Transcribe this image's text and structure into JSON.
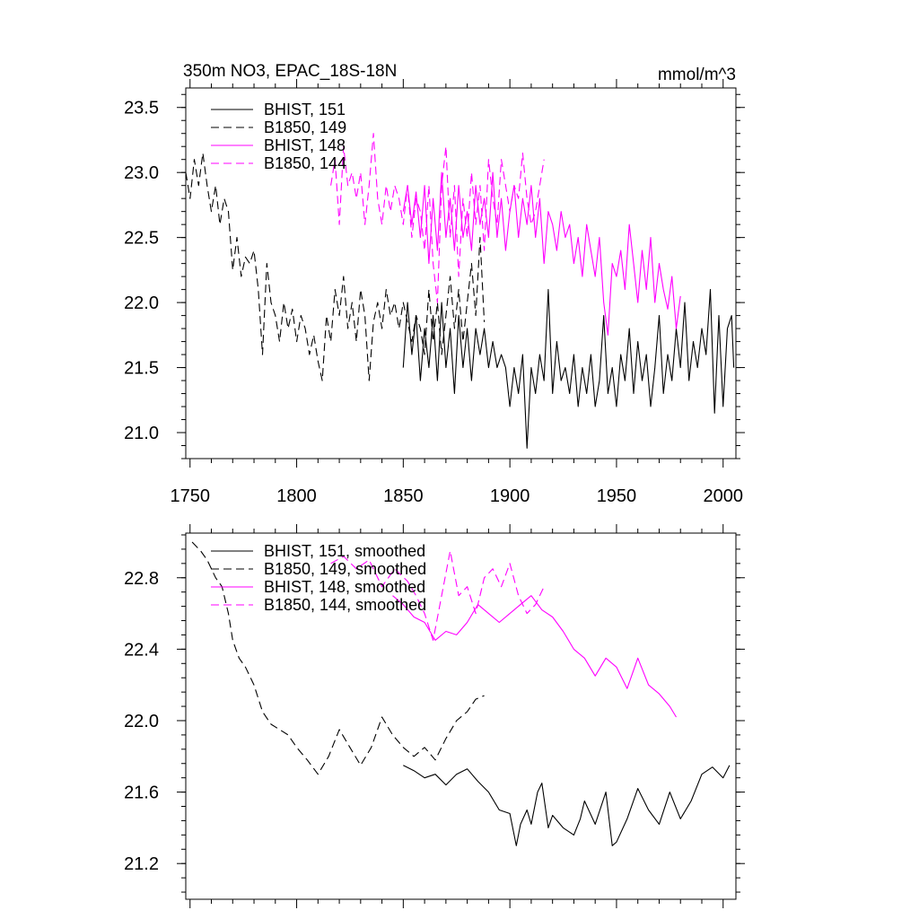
{
  "figure": {
    "title_left": "350m NO3, EPAC_18S-18N",
    "title_right": "mmol/m^3"
  },
  "chart_data": [
    {
      "type": "line",
      "title": "350m NO3, EPAC_18S-18N",
      "units": "mmol/m^3",
      "xlabel": "",
      "ylabel": "",
      "xlim": [
        1748,
        2006
      ],
      "ylim": [
        20.8,
        23.65
      ],
      "x_ticks": [
        1750,
        1800,
        1850,
        1900,
        1950,
        2000
      ],
      "x_tick_labels": [
        "1750",
        "1800",
        "1850",
        "1900",
        "1950",
        "2000"
      ],
      "y_ticks": [
        21.0,
        21.5,
        22.0,
        22.5,
        23.0,
        23.5
      ],
      "y_tick_labels": [
        "21.0",
        "21.5",
        "22.0",
        "22.5",
        "23.0",
        "23.5"
      ],
      "legend_position": "top-left",
      "series": [
        {
          "name": "BHIST, 151",
          "color": "#000000",
          "dash": "solid",
          "x": [
            1850,
            1852,
            1854,
            1856,
            1858,
            1860,
            1862,
            1864,
            1866,
            1868,
            1870,
            1872,
            1874,
            1876,
            1878,
            1880,
            1882,
            1884,
            1886,
            1888,
            1890,
            1892,
            1894,
            1896,
            1898,
            1900,
            1902,
            1904,
            1906,
            1908,
            1910,
            1912,
            1914,
            1916,
            1918,
            1920,
            1922,
            1924,
            1926,
            1928,
            1930,
            1932,
            1934,
            1936,
            1938,
            1940,
            1942,
            1944,
            1946,
            1948,
            1950,
            1952,
            1954,
            1956,
            1958,
            1960,
            1962,
            1964,
            1966,
            1968,
            1970,
            1972,
            1974,
            1976,
            1978,
            1980,
            1982,
            1984,
            1986,
            1988,
            1990,
            1992,
            1994,
            1996,
            1998,
            2000,
            2002,
            2004,
            2005
          ],
          "y": [
            21.5,
            22.0,
            21.6,
            21.9,
            21.4,
            21.8,
            21.5,
            21.9,
            21.4,
            22.0,
            21.5,
            21.8,
            21.3,
            21.9,
            21.5,
            21.8,
            21.4,
            21.8,
            21.6,
            21.8,
            21.5,
            21.7,
            21.5,
            21.6,
            21.5,
            21.2,
            21.5,
            21.3,
            21.6,
            20.88,
            21.5,
            21.3,
            21.6,
            21.4,
            22.1,
            21.3,
            21.7,
            21.4,
            21.5,
            21.3,
            21.6,
            21.2,
            21.5,
            21.3,
            21.6,
            21.2,
            21.4,
            21.9,
            21.3,
            21.5,
            21.2,
            21.6,
            21.4,
            21.8,
            21.3,
            21.7,
            21.4,
            21.6,
            21.2,
            21.5,
            21.9,
            21.3,
            21.6,
            21.4,
            21.8,
            21.5,
            22.0,
            21.4,
            21.7,
            21.5,
            21.8,
            21.6,
            22.1,
            21.15,
            21.9,
            21.2,
            21.8,
            21.9,
            21.5
          ]
        },
        {
          "name": "B1850, 149",
          "color": "#000000",
          "dash": "dashed",
          "x": [
            1748,
            1750,
            1752,
            1754,
            1756,
            1758,
            1760,
            1762,
            1764,
            1766,
            1768,
            1770,
            1772,
            1774,
            1776,
            1778,
            1780,
            1782,
            1784,
            1786,
            1788,
            1790,
            1792,
            1794,
            1796,
            1798,
            1800,
            1802,
            1804,
            1806,
            1808,
            1810,
            1812,
            1814,
            1816,
            1818,
            1820,
            1822,
            1824,
            1826,
            1828,
            1830,
            1832,
            1834,
            1836,
            1838,
            1840,
            1842,
            1844,
            1846,
            1848,
            1850,
            1852,
            1854,
            1856,
            1858,
            1860,
            1862,
            1864,
            1866,
            1868,
            1870,
            1872,
            1874,
            1876,
            1878,
            1880,
            1882,
            1884,
            1886,
            1888
          ],
          "y": [
            23.0,
            22.8,
            23.1,
            22.9,
            23.15,
            22.9,
            22.7,
            22.9,
            22.6,
            22.8,
            22.7,
            22.25,
            22.5,
            22.2,
            22.35,
            22.3,
            22.4,
            22.1,
            21.6,
            22.3,
            22.0,
            21.9,
            21.7,
            22.0,
            21.8,
            21.95,
            21.7,
            21.9,
            21.8,
            21.6,
            21.75,
            21.55,
            21.4,
            21.9,
            21.7,
            22.1,
            21.9,
            22.2,
            21.8,
            22.0,
            21.7,
            22.1,
            21.9,
            21.4,
            21.85,
            22.0,
            21.8,
            22.1,
            21.9,
            22.0,
            21.8,
            22.0,
            21.85,
            21.7,
            21.9,
            21.8,
            21.6,
            22.1,
            21.7,
            22.0,
            21.6,
            21.9,
            22.2,
            21.8,
            22.1,
            21.7,
            22.0,
            22.3,
            21.9,
            22.5,
            21.85
          ]
        },
        {
          "name": "BHIST, 148",
          "color": "#ff00ff",
          "dash": "solid",
          "x": [
            1850,
            1852,
            1854,
            1856,
            1858,
            1860,
            1862,
            1864,
            1866,
            1868,
            1870,
            1872,
            1874,
            1876,
            1878,
            1880,
            1882,
            1884,
            1886,
            1888,
            1890,
            1892,
            1894,
            1896,
            1898,
            1900,
            1902,
            1904,
            1906,
            1908,
            1910,
            1912,
            1914,
            1916,
            1918,
            1920,
            1922,
            1924,
            1926,
            1928,
            1930,
            1932,
            1934,
            1936,
            1938,
            1940,
            1942,
            1944,
            1946,
            1948,
            1950,
            1952,
            1954,
            1956,
            1958,
            1960,
            1962,
            1964,
            1966,
            1968,
            1970,
            1972,
            1974,
            1976,
            1978,
            1980
          ],
          "y": [
            22.7,
            22.9,
            22.6,
            22.85,
            22.5,
            22.9,
            22.3,
            22.8,
            22.4,
            23.0,
            22.5,
            22.8,
            22.4,
            22.9,
            22.5,
            22.7,
            22.4,
            22.9,
            22.6,
            22.8,
            22.5,
            23.0,
            22.5,
            22.8,
            22.4,
            22.7,
            22.9,
            22.5,
            22.8,
            22.6,
            22.9,
            22.5,
            22.8,
            22.3,
            22.7,
            22.6,
            22.4,
            22.7,
            22.5,
            22.6,
            22.3,
            22.5,
            22.2,
            22.6,
            22.4,
            22.2,
            22.5,
            22.0,
            21.75,
            22.3,
            22.2,
            22.4,
            22.1,
            22.6,
            22.3,
            22.0,
            22.4,
            22.1,
            22.5,
            22.0,
            22.3,
            22.1,
            21.95,
            22.2,
            21.8,
            22.05
          ]
        },
        {
          "name": "B1850, 144",
          "color": "#ff00ff",
          "dash": "dashed",
          "x": [
            1816,
            1818,
            1820,
            1822,
            1824,
            1826,
            1828,
            1830,
            1832,
            1834,
            1836,
            1838,
            1840,
            1842,
            1844,
            1846,
            1848,
            1850,
            1852,
            1854,
            1856,
            1858,
            1860,
            1862,
            1864,
            1866,
            1868,
            1870,
            1872,
            1874,
            1876,
            1878,
            1880,
            1882,
            1884,
            1886,
            1888,
            1890,
            1892,
            1894,
            1896,
            1898,
            1900,
            1902,
            1904,
            1906,
            1908,
            1910,
            1912,
            1914,
            1916
          ],
          "y": [
            22.9,
            23.1,
            22.6,
            23.2,
            22.9,
            23.0,
            22.8,
            23.0,
            22.6,
            22.9,
            23.3,
            22.8,
            22.6,
            22.9,
            22.7,
            22.9,
            22.8,
            22.6,
            22.9,
            22.5,
            22.8,
            22.7,
            22.4,
            22.9,
            22.3,
            22.0,
            22.9,
            23.2,
            22.5,
            22.9,
            22.2,
            22.8,
            22.5,
            23.0,
            22.6,
            22.9,
            22.4,
            23.1,
            22.8,
            22.6,
            23.1,
            22.9,
            22.7,
            22.9,
            22.8,
            23.15,
            22.8,
            22.6,
            22.7,
            22.9,
            23.1
          ]
        }
      ]
    },
    {
      "type": "line",
      "title": "",
      "xlabel": "",
      "ylabel": "",
      "xlim": [
        1748,
        2006
      ],
      "ylim": [
        21.0,
        23.05
      ],
      "y_ticks": [
        21.2,
        21.6,
        22.0,
        22.4,
        22.8
      ],
      "y_tick_labels": [
        "21.2",
        "21.6",
        "22.0",
        "22.4",
        "22.8"
      ],
      "legend_position": "top-left",
      "series": [
        {
          "name": "BHIST, 151, smoothed",
          "color": "#000000",
          "dash": "solid",
          "x": [
            1850,
            1855,
            1860,
            1865,
            1870,
            1875,
            1880,
            1885,
            1890,
            1895,
            1900,
            1903,
            1905,
            1908,
            1910,
            1913,
            1915,
            1918,
            1920,
            1925,
            1930,
            1933,
            1935,
            1940,
            1945,
            1948,
            1950,
            1955,
            1960,
            1965,
            1970,
            1975,
            1980,
            1985,
            1990,
            1995,
            2000,
            2003
          ],
          "y": [
            21.75,
            21.72,
            21.68,
            21.7,
            21.64,
            21.7,
            21.73,
            21.66,
            21.6,
            21.5,
            21.48,
            21.3,
            21.42,
            21.5,
            21.42,
            21.6,
            21.65,
            21.4,
            21.47,
            21.4,
            21.36,
            21.45,
            21.55,
            21.42,
            21.6,
            21.3,
            21.32,
            21.45,
            21.62,
            21.5,
            21.42,
            21.6,
            21.45,
            21.55,
            21.7,
            21.74,
            21.68,
            21.75
          ]
        },
        {
          "name": "B1850, 149, smoothed",
          "color": "#000000",
          "dash": "dashed",
          "x": [
            1751,
            1755,
            1758,
            1762,
            1765,
            1768,
            1770,
            1773,
            1776,
            1780,
            1784,
            1788,
            1792,
            1796,
            1800,
            1805,
            1810,
            1815,
            1820,
            1825,
            1830,
            1835,
            1840,
            1845,
            1850,
            1855,
            1860,
            1865,
            1870,
            1875,
            1880,
            1884,
            1888
          ],
          "y": [
            23.0,
            22.95,
            22.9,
            22.8,
            22.75,
            22.6,
            22.45,
            22.35,
            22.3,
            22.2,
            22.05,
            21.98,
            21.95,
            21.92,
            21.85,
            21.78,
            21.7,
            21.8,
            21.95,
            21.85,
            21.75,
            21.85,
            22.02,
            21.92,
            21.85,
            21.8,
            21.85,
            21.78,
            21.9,
            22.0,
            22.05,
            22.12,
            22.14
          ]
        },
        {
          "name": "BHIST, 148, smoothed",
          "color": "#ff00ff",
          "dash": "solid",
          "x": [
            1845,
            1850,
            1855,
            1860,
            1865,
            1870,
            1875,
            1880,
            1885,
            1890,
            1895,
            1900,
            1905,
            1910,
            1915,
            1920,
            1925,
            1930,
            1935,
            1940,
            1945,
            1950,
            1955,
            1960,
            1965,
            1970,
            1975,
            1978
          ],
          "y": [
            22.7,
            22.65,
            22.58,
            22.55,
            22.45,
            22.5,
            22.48,
            22.55,
            22.65,
            22.6,
            22.55,
            22.6,
            22.65,
            22.7,
            22.62,
            22.58,
            22.5,
            22.4,
            22.35,
            22.25,
            22.35,
            22.3,
            22.18,
            22.35,
            22.2,
            22.15,
            22.08,
            22.02
          ]
        },
        {
          "name": "B1850, 144, smoothed",
          "color": "#ff00ff",
          "dash": "dashed",
          "x": [
            1816,
            1822,
            1828,
            1834,
            1840,
            1846,
            1852,
            1856,
            1860,
            1864,
            1868,
            1872,
            1876,
            1880,
            1884,
            1888,
            1892,
            1896,
            1900,
            1904,
            1908,
            1912,
            1916
          ],
          "y": [
            22.88,
            22.92,
            22.85,
            22.9,
            22.75,
            22.85,
            22.78,
            22.7,
            22.6,
            22.45,
            22.7,
            22.95,
            22.7,
            22.75,
            22.6,
            22.8,
            22.85,
            22.75,
            22.88,
            22.7,
            22.6,
            22.65,
            22.75
          ]
        }
      ]
    }
  ]
}
